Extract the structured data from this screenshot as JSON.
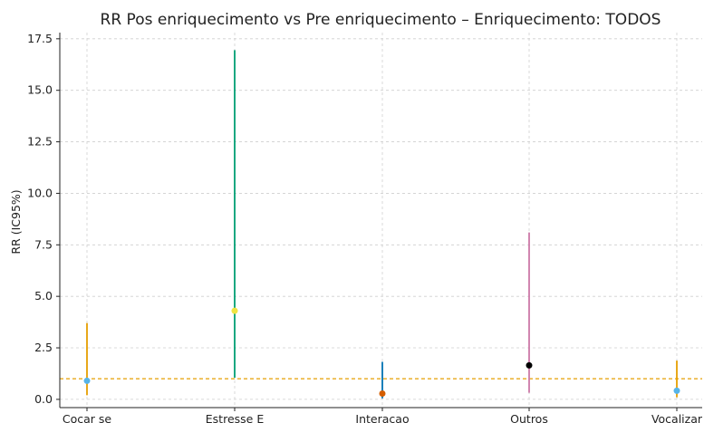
{
  "chart_data": {
    "type": "scatter",
    "title": "RR Pos enriquecimento vs Pre enriquecimento – Enriquecimento: TODOS",
    "xlabel": "",
    "ylabel": "RR (IC95%)",
    "categories": [
      "Cocar se",
      "Estresse  E",
      "Interacao",
      "Outros",
      "Vocalizar"
    ],
    "points": [
      {
        "category": "Cocar se",
        "rr": 0.9,
        "ci_low": 0.2,
        "ci_high": 3.7,
        "color": "#56b4e9",
        "ci_color": "#e69f00"
      },
      {
        "category": "Estresse  E",
        "rr": 4.3,
        "ci_low": 1.05,
        "ci_high": 16.95,
        "color": "#f0e442",
        "ci_color": "#009e73"
      },
      {
        "category": "Interacao",
        "rr": 0.28,
        "ci_low": 0.05,
        "ci_high": 1.82,
        "color": "#d55e00",
        "ci_color": "#0072b2"
      },
      {
        "category": "Outros",
        "rr": 1.65,
        "ci_low": 0.32,
        "ci_high": 8.1,
        "color": "#000000",
        "ci_color": "#cc79a7"
      },
      {
        "category": "Vocalizar",
        "rr": 0.42,
        "ci_low": 0.1,
        "ci_high": 1.88,
        "color": "#56b4e9",
        "ci_color": "#e69f00"
      }
    ],
    "yticks": [
      0.0,
      2.5,
      5.0,
      7.5,
      10.0,
      12.5,
      15.0,
      17.5
    ],
    "ytick_labels": [
      "0.0",
      "2.5",
      "5.0",
      "7.5",
      "10.0",
      "12.5",
      "15.0",
      "17.5"
    ],
    "ylim": [
      -0.4,
      17.8
    ],
    "reference_line": {
      "y": 1.0,
      "color": "#e69f00",
      "style": "dashed"
    },
    "grid": true,
    "legend": "none"
  }
}
